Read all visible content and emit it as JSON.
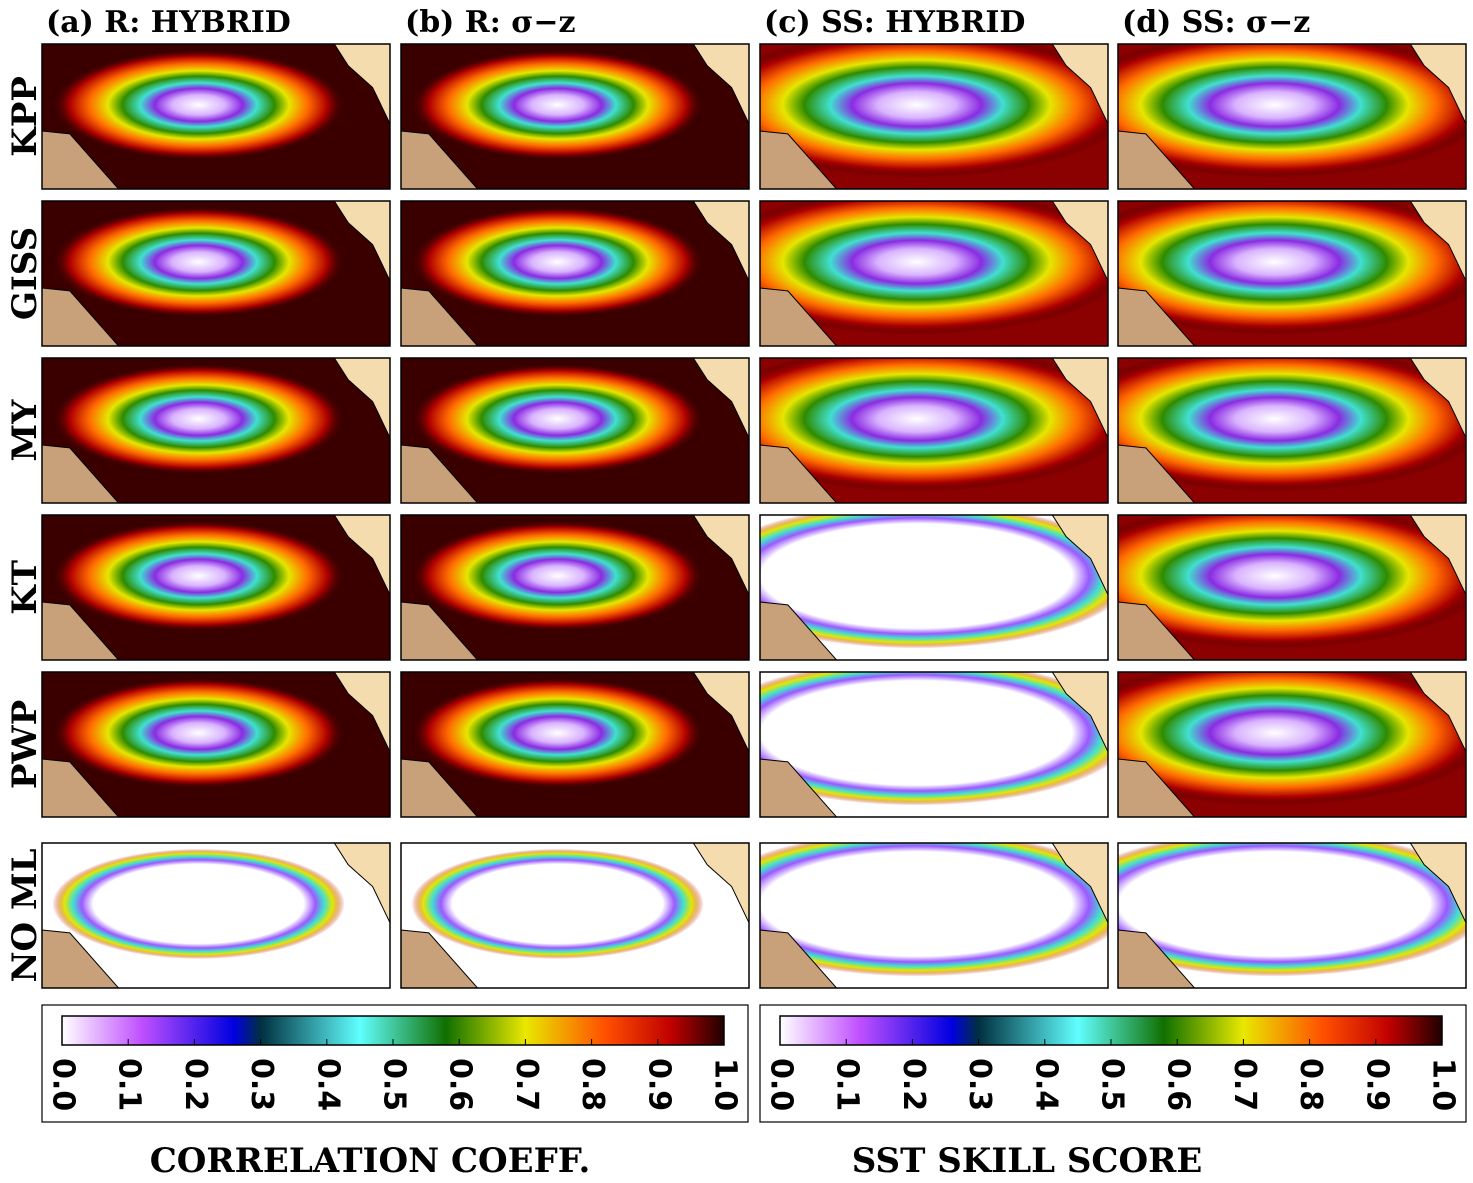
{
  "columns": [
    "(a) R: HYBRID",
    "(b) R: σ−z",
    "(c) SS: HYBRID",
    "(d) SS: σ−z"
  ],
  "rows": [
    "KPP",
    "GISS",
    "MY",
    "KT",
    "PWP",
    "NO ML"
  ],
  "colorbars": [
    {
      "label": "CORRELATION COEFF.",
      "lim": [
        0,
        1
      ],
      "ticks": [
        {
          "value": 0,
          "label": "0.0"
        },
        0.1,
        0.2,
        0.3,
        0.4,
        0.5,
        0.6,
        0.7,
        0.8,
        0.9,
        {
          "value": 1,
          "label": "1.0"
        }
      ]
    },
    {
      "label": "SST SKILL SCORE",
      "lim": [
        0,
        1
      ],
      "ticks": [
        {
          "value": 0,
          "label": "0.0"
        },
        0.1,
        0.2,
        0.3,
        0.4,
        0.5,
        0.6,
        0.7,
        0.8,
        0.9,
        {
          "value": 1,
          "label": "1.0"
        }
      ]
    }
  ]
}
